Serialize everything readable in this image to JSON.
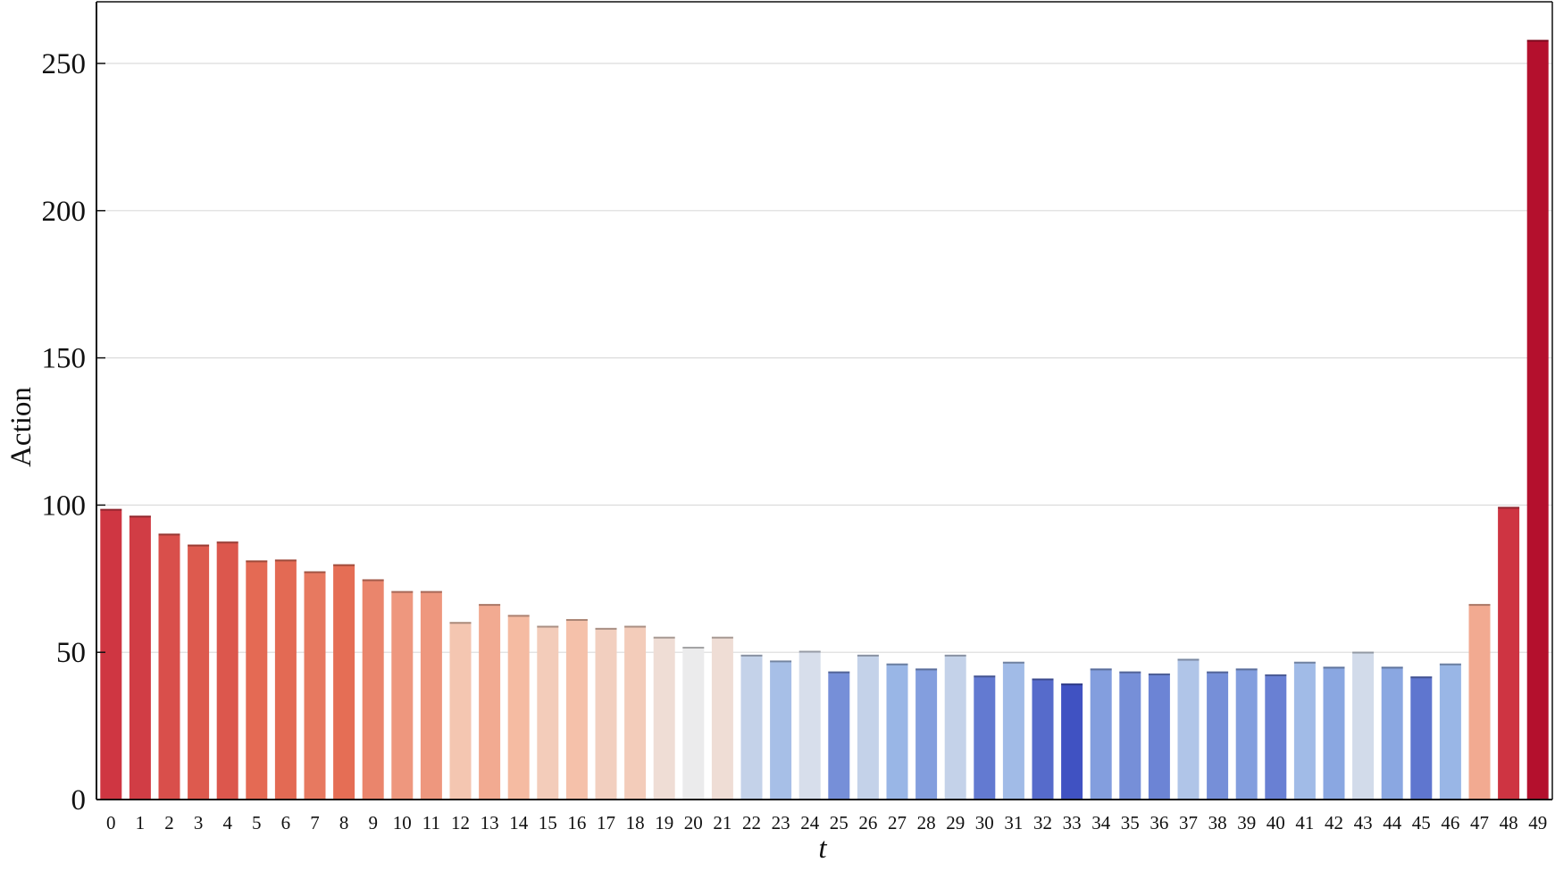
{
  "chart_data": {
    "type": "bar",
    "title": "",
    "xlabel": "t",
    "ylabel": "Action",
    "ylim": [
      0,
      270
    ],
    "yticks": [
      0,
      50,
      100,
      150,
      200,
      250
    ],
    "grid": "horizontal",
    "colormap": "coolwarm (by value: low = blue, high = red)",
    "categories": [
      "0",
      "1",
      "2",
      "3",
      "4",
      "5",
      "6",
      "7",
      "8",
      "9",
      "10",
      "11",
      "12",
      "13",
      "14",
      "15",
      "16",
      "17",
      "18",
      "19",
      "20",
      "21",
      "22",
      "23",
      "24",
      "25",
      "26",
      "27",
      "28",
      "29",
      "30",
      "31",
      "32",
      "33",
      "34",
      "35",
      "36",
      "37",
      "38",
      "39",
      "40",
      "41",
      "42",
      "43",
      "44",
      "45",
      "46",
      "47",
      "48",
      "49"
    ],
    "values": [
      98.7,
      96.4,
      90.3,
      86.6,
      87.6,
      81.2,
      81.5,
      77.5,
      79.9,
      74.8,
      70.8,
      70.8,
      60.3,
      66.4,
      62.7,
      59.0,
      61.3,
      58.3,
      59.0,
      55.3,
      51.9,
      55.3,
      49.2,
      47.2,
      50.5,
      43.5,
      49.2,
      46.2,
      44.5,
      49.2,
      42.1,
      46.8,
      41.1,
      39.4,
      44.5,
      43.5,
      42.8,
      47.8,
      43.5,
      44.5,
      42.5,
      46.8,
      45.1,
      50.2,
      45.1,
      41.8,
      46.2,
      66.4,
      99.4,
      258.0
    ]
  }
}
